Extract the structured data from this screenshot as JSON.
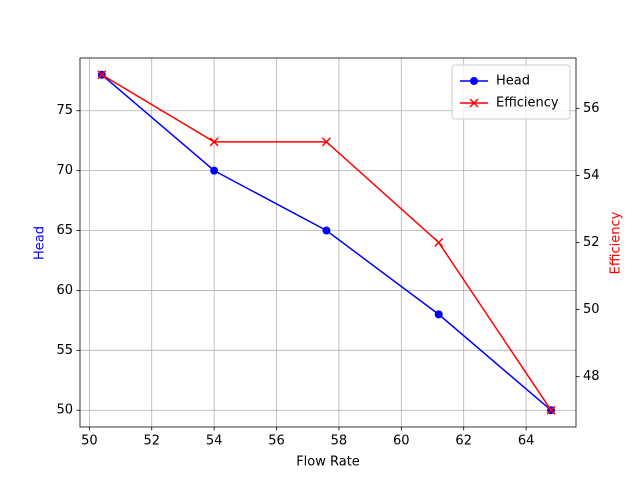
{
  "chart_data": {
    "type": "line",
    "xlabel": "Flow Rate",
    "ylabel": "Head",
    "y2label": "Efficiency",
    "x": [
      50.4,
      54.0,
      57.6,
      61.2,
      64.8
    ],
    "series": [
      {
        "name": "Head",
        "color": "#0000ff",
        "marker": "o",
        "values": [
          78,
          70,
          65,
          58,
          50
        ]
      },
      {
        "name": "Efficiency",
        "color": "#ff0000",
        "marker": "x",
        "axis": "y2",
        "values": [
          57,
          55,
          55,
          52,
          47
        ]
      }
    ],
    "xlim": [
      49.7,
      65.6
    ],
    "xticks": [
      50,
      52,
      54,
      56,
      58,
      60,
      62,
      64
    ],
    "ylim": [
      48.6,
      79.4
    ],
    "yticks": [
      50,
      55,
      60,
      65,
      70,
      75
    ],
    "y2lim": [
      46.5,
      57.5
    ],
    "y2ticks": [
      48,
      50,
      52,
      54,
      56
    ],
    "grid": true,
    "legend": "upper right"
  }
}
